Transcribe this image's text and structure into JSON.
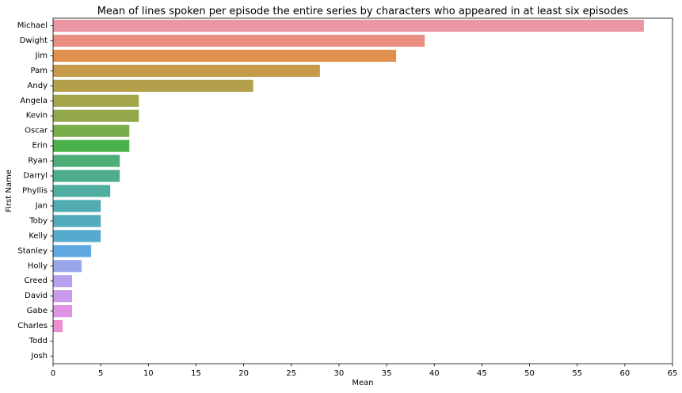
{
  "chart_data": {
    "type": "bar",
    "orientation": "horizontal",
    "title": "Mean of lines spoken per episode the entire series by characters who appeared in at least six episodes",
    "xlabel": "Mean",
    "ylabel": "First Name",
    "xlim": [
      0,
      65
    ],
    "xticks": [
      0,
      5,
      10,
      15,
      20,
      25,
      30,
      35,
      40,
      45,
      50,
      55,
      60,
      65
    ],
    "grid": false,
    "legend": "none",
    "categories": [
      "Michael",
      "Dwight",
      "Jim",
      "Pam",
      "Andy",
      "Angela",
      "Kevin",
      "Oscar",
      "Erin",
      "Ryan",
      "Darryl",
      "Phyllis",
      "Jan",
      "Toby",
      "Kelly",
      "Stanley",
      "Holly",
      "Creed",
      "David",
      "Gabe",
      "Charles",
      "Todd",
      "Josh"
    ],
    "values": [
      62,
      39,
      36,
      28,
      21,
      9,
      9,
      8,
      8,
      7,
      7,
      6,
      5,
      5,
      5,
      4,
      3,
      2,
      2,
      2,
      1,
      0,
      0
    ],
    "colors": [
      "#ea96a3",
      "#e98f82",
      "#e1904e",
      "#c69a4b",
      "#b4a04a",
      "#a2a54a",
      "#93a84a",
      "#79ac4b",
      "#4ab048",
      "#4cad79",
      "#4ead8e",
      "#4faea1",
      "#50acb0",
      "#52abbd",
      "#56aace",
      "#5fa8e0",
      "#9aa5ea",
      "#b6a0ed",
      "#cc9aed",
      "#e093e3",
      "#ea8fd1",
      "#ea90c0",
      "#ea92b2"
    ]
  }
}
